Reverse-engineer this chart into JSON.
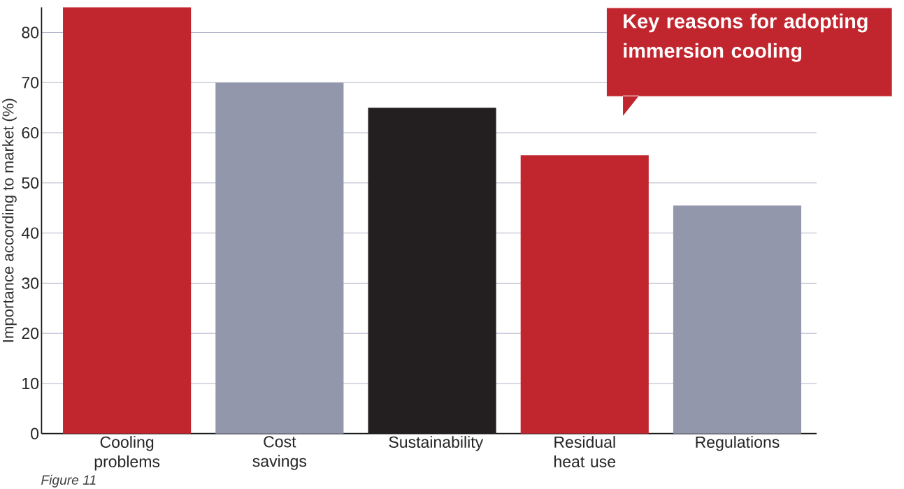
{
  "chart_data": {
    "type": "bar",
    "title": "Key reasons for adopting immersion cooling",
    "ylabel": "Importance according to market (%)",
    "categories": [
      "Cooling problems",
      "Cost savings",
      "Sustainability",
      "Residual heat use",
      "Regulations"
    ],
    "values": [
      85,
      70,
      65,
      55.5,
      45.5
    ],
    "colors": [
      "#c1262f",
      "#9297ab",
      "#231f20",
      "#c1262f",
      "#9297ab"
    ],
    "ylim": [
      0,
      85
    ],
    "yticks": [
      0,
      10,
      20,
      30,
      40,
      50,
      60,
      70,
      80
    ],
    "grid": "y",
    "annotations": [
      "Figure 11"
    ]
  }
}
